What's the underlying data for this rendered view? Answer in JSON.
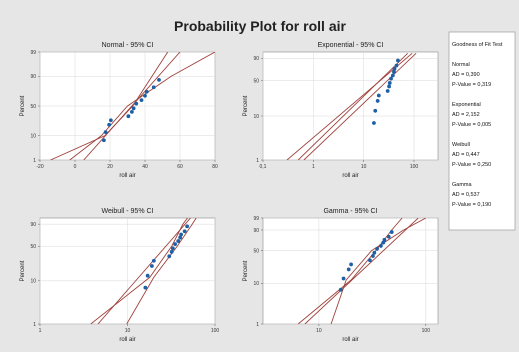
{
  "figure": {
    "title": "Probability Plot for roll air",
    "colors": {
      "background": "#e6e6e6",
      "panel": "#ffffff",
      "points": "#1f5fa6",
      "lines": "#a0413b",
      "grid": "#d8d8d8"
    }
  },
  "legend": {
    "title": "Goodness of Fit Test",
    "entries": [
      {
        "name": "Normal",
        "ad": "AD = 0,390",
        "p": "P-Value = 0,319"
      },
      {
        "name": "Exponential",
        "ad": "AD = 2,152",
        "p": "P-Value = 0,005"
      },
      {
        "name": "Weibull",
        "ad": "AD = 0,447",
        "p": "P-Value = 0,250"
      },
      {
        "name": "Gamma",
        "ad": "AD = 0,537",
        "p": "P-Value = 0,190"
      }
    ]
  },
  "chart_data": [
    {
      "type": "scatter",
      "title": "Normal - 95% CI",
      "xlabel": "roll air",
      "ylabel": "Percent",
      "x_scale": "linear",
      "xlim": [
        -20,
        80
      ],
      "x_ticks": [
        "-20",
        "0",
        "20",
        "40",
        "60",
        "80"
      ],
      "y_scale": "normal-probability",
      "y_ticks": [
        "1",
        "10",
        "50",
        "90",
        "99"
      ],
      "grid": true,
      "points": [
        [
          16.5,
          7
        ],
        [
          17.5,
          13
        ],
        [
          19.5,
          21
        ],
        [
          20.5,
          27
        ],
        [
          30.5,
          33
        ],
        [
          32.5,
          40
        ],
        [
          33.5,
          46
        ],
        [
          35,
          54
        ],
        [
          38,
          60
        ],
        [
          40,
          67
        ],
        [
          41,
          73
        ],
        [
          45,
          79
        ],
        [
          48,
          87
        ]
      ],
      "fit_line": [
        [
          5,
          1
        ],
        [
          60,
          99
        ]
      ],
      "ci_lower": [
        [
          -14,
          1
        ],
        [
          17,
          10
        ],
        [
          33,
          50
        ],
        [
          44,
          90
        ],
        [
          53,
          99
        ]
      ],
      "ci_upper": [
        [
          -3,
          1
        ],
        [
          15,
          10
        ],
        [
          30,
          50
        ],
        [
          55,
          90
        ],
        [
          80,
          99
        ]
      ]
    },
    {
      "type": "scatter",
      "title": "Exponential - 95% CI",
      "xlabel": "roll air",
      "ylabel": "Percent",
      "x_scale": "log",
      "xlim": [
        0.1,
        300
      ],
      "x_ticks": [
        "0,1",
        "1",
        "10",
        "100"
      ],
      "y_scale": "exponential-probability",
      "y_ticks": [
        "1",
        "10",
        "50",
        "90"
      ],
      "grid": true,
      "points": [
        [
          16,
          7
        ],
        [
          17,
          13
        ],
        [
          19,
          21
        ],
        [
          20,
          27
        ],
        [
          30,
          33
        ],
        [
          32,
          40
        ],
        [
          33,
          46
        ],
        [
          35,
          54
        ],
        [
          38,
          60
        ],
        [
          40,
          67
        ],
        [
          41,
          73
        ],
        [
          45,
          79
        ],
        [
          48,
          87
        ]
      ],
      "fit_line": [
        [
          0.3,
          1
        ],
        [
          92,
          95
        ]
      ],
      "ci_lower": [
        [
          0.65,
          1
        ],
        [
          110,
          95
        ]
      ],
      "ci_upper": [
        [
          0.5,
          1
        ],
        [
          75,
          95
        ]
      ]
    },
    {
      "type": "scatter",
      "title": "Weibull - 95% CI",
      "xlabel": "roll air",
      "ylabel": "Percent",
      "x_scale": "log",
      "xlim": [
        1,
        100
      ],
      "x_ticks": [
        "1",
        "10",
        "100"
      ],
      "y_scale": "weibull-probability",
      "y_ticks": [
        "1",
        "10",
        "50",
        "90"
      ],
      "grid": true,
      "points": [
        [
          16,
          7
        ],
        [
          17,
          13
        ],
        [
          19,
          21
        ],
        [
          20,
          27
        ],
        [
          30,
          33
        ],
        [
          32,
          40
        ],
        [
          33,
          46
        ],
        [
          35,
          54
        ],
        [
          38,
          60
        ],
        [
          40,
          67
        ],
        [
          41,
          73
        ],
        [
          45,
          79
        ],
        [
          48,
          87
        ]
      ],
      "fit_line": [
        [
          4.6,
          1
        ],
        [
          61,
          99
        ]
      ],
      "ci_lower": [
        [
          3.8,
          1
        ],
        [
          18,
          12
        ],
        [
          32,
          50
        ],
        [
          43,
          90
        ],
        [
          55,
          99
        ]
      ],
      "ci_upper": [
        [
          9.8,
          1
        ],
        [
          20,
          12
        ],
        [
          37,
          50
        ],
        [
          55,
          90
        ],
        [
          68,
          99
        ]
      ]
    },
    {
      "type": "scatter",
      "title": "Gamma - 95% CI",
      "xlabel": "roll air",
      "ylabel": "Percent",
      "x_scale": "log",
      "xlim": [
        3,
        130
      ],
      "x_ticks": [
        "10",
        "100"
      ],
      "y_scale": "gamma-probability",
      "y_ticks": [
        "1",
        "10",
        "50",
        "90",
        "99"
      ],
      "grid": true,
      "points": [
        [
          16,
          7
        ],
        [
          17,
          13
        ],
        [
          19,
          21
        ],
        [
          20,
          27
        ],
        [
          30,
          33
        ],
        [
          32,
          40
        ],
        [
          33,
          46
        ],
        [
          35,
          54
        ],
        [
          38,
          60
        ],
        [
          40,
          67
        ],
        [
          41,
          73
        ],
        [
          45,
          79
        ],
        [
          48,
          87
        ]
      ],
      "fit_line": [
        [
          7.4,
          1
        ],
        [
          85,
          99
        ]
      ],
      "ci_lower": [
        [
          6.4,
          1
        ],
        [
          20,
          12
        ],
        [
          34,
          50
        ],
        [
          48,
          90
        ],
        [
          60,
          99
        ]
      ],
      "ci_upper": [
        [
          13,
          1
        ],
        [
          18,
          12
        ],
        [
          31,
          50
        ],
        [
          62,
          90
        ],
        [
          100,
          99
        ]
      ]
    }
  ]
}
